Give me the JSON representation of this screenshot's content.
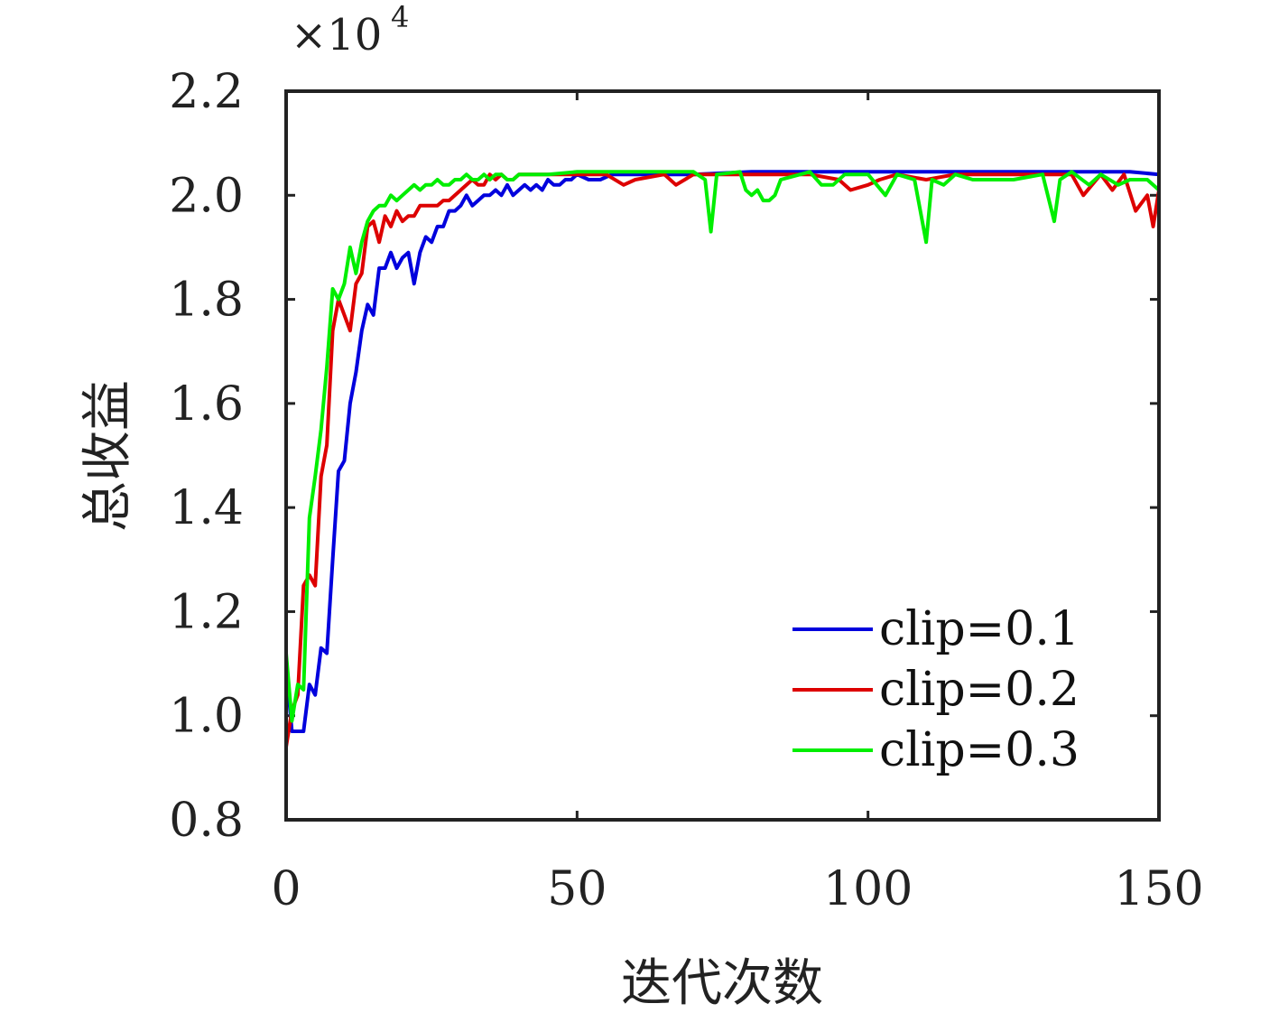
{
  "chart_data": {
    "type": "line",
    "title": "",
    "xlabel": "迭代次数",
    "ylabel": "总收益",
    "y_multiplier_label": "×10",
    "y_multiplier_exponent": "4",
    "xlim": [
      0,
      150
    ],
    "ylim": [
      0.8,
      2.2
    ],
    "x_ticks": [
      0,
      50,
      100,
      150
    ],
    "x_tick_labels": [
      "0",
      "50",
      "100",
      "150"
    ],
    "y_ticks": [
      0.8,
      1.0,
      1.2,
      1.4,
      1.6,
      1.8,
      2.0,
      2.2
    ],
    "y_tick_labels": [
      "0.8",
      "1.0",
      "1.2",
      "1.4",
      "1.6",
      "1.8",
      "2.0",
      "2.2"
    ],
    "grid": false,
    "legend_position": "bottom-right",
    "series": [
      {
        "name": "clip=0.1",
        "color": "#0000dd",
        "points": [
          [
            0,
            1.1
          ],
          [
            1,
            0.97
          ],
          [
            2,
            0.97
          ],
          [
            3,
            0.97
          ],
          [
            4,
            1.06
          ],
          [
            5,
            1.04
          ],
          [
            6,
            1.13
          ],
          [
            7,
            1.12
          ],
          [
            8,
            1.3
          ],
          [
            9,
            1.47
          ],
          [
            10,
            1.49
          ],
          [
            11,
            1.6
          ],
          [
            12,
            1.66
          ],
          [
            13,
            1.74
          ],
          [
            14,
            1.79
          ],
          [
            15,
            1.77
          ],
          [
            16,
            1.86
          ],
          [
            17,
            1.86
          ],
          [
            18,
            1.89
          ],
          [
            19,
            1.86
          ],
          [
            20,
            1.88
          ],
          [
            21,
            1.89
          ],
          [
            22,
            1.83
          ],
          [
            23,
            1.89
          ],
          [
            24,
            1.92
          ],
          [
            25,
            1.91
          ],
          [
            26,
            1.94
          ],
          [
            27,
            1.94
          ],
          [
            28,
            1.97
          ],
          [
            29,
            1.97
          ],
          [
            30,
            1.98
          ],
          [
            31,
            2.0
          ],
          [
            32,
            1.98
          ],
          [
            33,
            1.99
          ],
          [
            34,
            2.0
          ],
          [
            35,
            2.0
          ],
          [
            36,
            2.01
          ],
          [
            37,
            2.0
          ],
          [
            38,
            2.02
          ],
          [
            39,
            2.0
          ],
          [
            40,
            2.01
          ],
          [
            41,
            2.02
          ],
          [
            42,
            2.01
          ],
          [
            43,
            2.02
          ],
          [
            44,
            2.01
          ],
          [
            45,
            2.03
          ],
          [
            46,
            2.02
          ],
          [
            47,
            2.02
          ],
          [
            48,
            2.03
          ],
          [
            49,
            2.03
          ],
          [
            50,
            2.04
          ],
          [
            52,
            2.03
          ],
          [
            54,
            2.03
          ],
          [
            56,
            2.04
          ],
          [
            58,
            2.04
          ],
          [
            60,
            2.04
          ],
          [
            65,
            2.04
          ],
          [
            70,
            2.04
          ],
          [
            80,
            2.045
          ],
          [
            90,
            2.045
          ],
          [
            100,
            2.045
          ],
          [
            110,
            2.045
          ],
          [
            120,
            2.045
          ],
          [
            130,
            2.045
          ],
          [
            140,
            2.045
          ],
          [
            145,
            2.045
          ],
          [
            150,
            2.04
          ]
        ]
      },
      {
        "name": "clip=0.2",
        "color": "#dd0000",
        "points": [
          [
            0,
            0.94
          ],
          [
            1,
            1.01
          ],
          [
            2,
            1.04
          ],
          [
            3,
            1.25
          ],
          [
            4,
            1.27
          ],
          [
            5,
            1.25
          ],
          [
            6,
            1.46
          ],
          [
            7,
            1.52
          ],
          [
            8,
            1.74
          ],
          [
            9,
            1.8
          ],
          [
            10,
            1.77
          ],
          [
            11,
            1.74
          ],
          [
            12,
            1.83
          ],
          [
            13,
            1.85
          ],
          [
            14,
            1.94
          ],
          [
            15,
            1.95
          ],
          [
            16,
            1.91
          ],
          [
            17,
            1.96
          ],
          [
            18,
            1.94
          ],
          [
            19,
            1.97
          ],
          [
            20,
            1.95
          ],
          [
            21,
            1.96
          ],
          [
            22,
            1.96
          ],
          [
            23,
            1.98
          ],
          [
            24,
            1.98
          ],
          [
            25,
            1.98
          ],
          [
            26,
            1.98
          ],
          [
            27,
            1.99
          ],
          [
            28,
            1.99
          ],
          [
            29,
            2.0
          ],
          [
            30,
            2.01
          ],
          [
            31,
            2.02
          ],
          [
            32,
            2.03
          ],
          [
            33,
            2.02
          ],
          [
            34,
            2.02
          ],
          [
            35,
            2.04
          ],
          [
            36,
            2.03
          ],
          [
            37,
            2.04
          ],
          [
            38,
            2.03
          ],
          [
            39,
            2.03
          ],
          [
            40,
            2.04
          ],
          [
            45,
            2.04
          ],
          [
            50,
            2.04
          ],
          [
            55,
            2.04
          ],
          [
            58,
            2.02
          ],
          [
            60,
            2.03
          ],
          [
            65,
            2.04
          ],
          [
            67,
            2.02
          ],
          [
            70,
            2.04
          ],
          [
            75,
            2.04
          ],
          [
            80,
            2.04
          ],
          [
            85,
            2.04
          ],
          [
            90,
            2.04
          ],
          [
            95,
            2.03
          ],
          [
            97,
            2.01
          ],
          [
            100,
            2.02
          ],
          [
            102,
            2.03
          ],
          [
            105,
            2.04
          ],
          [
            110,
            2.03
          ],
          [
            115,
            2.04
          ],
          [
            120,
            2.04
          ],
          [
            125,
            2.04
          ],
          [
            130,
            2.04
          ],
          [
            135,
            2.04
          ],
          [
            137,
            2.0
          ],
          [
            140,
            2.04
          ],
          [
            142,
            2.01
          ],
          [
            144,
            2.04
          ],
          [
            146,
            1.97
          ],
          [
            148,
            2.0
          ],
          [
            149,
            1.94
          ],
          [
            150,
            2.01
          ]
        ]
      },
      {
        "name": "clip=0.3",
        "color": "#00ee00",
        "points": [
          [
            0,
            1.12
          ],
          [
            1,
            0.99
          ],
          [
            2,
            1.06
          ],
          [
            3,
            1.05
          ],
          [
            4,
            1.38
          ],
          [
            5,
            1.46
          ],
          [
            6,
            1.55
          ],
          [
            7,
            1.67
          ],
          [
            8,
            1.82
          ],
          [
            9,
            1.8
          ],
          [
            10,
            1.83
          ],
          [
            11,
            1.9
          ],
          [
            12,
            1.85
          ],
          [
            13,
            1.91
          ],
          [
            14,
            1.95
          ],
          [
            15,
            1.97
          ],
          [
            16,
            1.98
          ],
          [
            17,
            1.98
          ],
          [
            18,
            2.0
          ],
          [
            19,
            1.99
          ],
          [
            20,
            2.0
          ],
          [
            21,
            2.01
          ],
          [
            22,
            2.02
          ],
          [
            23,
            2.01
          ],
          [
            24,
            2.02
          ],
          [
            25,
            2.02
          ],
          [
            26,
            2.03
          ],
          [
            27,
            2.02
          ],
          [
            28,
            2.02
          ],
          [
            29,
            2.03
          ],
          [
            30,
            2.03
          ],
          [
            31,
            2.04
          ],
          [
            32,
            2.03
          ],
          [
            33,
            2.03
          ],
          [
            34,
            2.04
          ],
          [
            35,
            2.03
          ],
          [
            36,
            2.04
          ],
          [
            37,
            2.04
          ],
          [
            38,
            2.03
          ],
          [
            39,
            2.03
          ],
          [
            40,
            2.04
          ],
          [
            45,
            2.04
          ],
          [
            50,
            2.045
          ],
          [
            60,
            2.045
          ],
          [
            70,
            2.045
          ],
          [
            72,
            2.03
          ],
          [
            73,
            1.93
          ],
          [
            74,
            2.04
          ],
          [
            78,
            2.045
          ],
          [
            79,
            2.01
          ],
          [
            80,
            2.0
          ],
          [
            81,
            2.01
          ],
          [
            82,
            1.99
          ],
          [
            83,
            1.99
          ],
          [
            84,
            2.0
          ],
          [
            85,
            2.03
          ],
          [
            90,
            2.045
          ],
          [
            92,
            2.02
          ],
          [
            94,
            2.02
          ],
          [
            96,
            2.04
          ],
          [
            100,
            2.04
          ],
          [
            103,
            2.0
          ],
          [
            105,
            2.04
          ],
          [
            108,
            2.03
          ],
          [
            110,
            1.91
          ],
          [
            111,
            2.03
          ],
          [
            113,
            2.02
          ],
          [
            115,
            2.04
          ],
          [
            118,
            2.03
          ],
          [
            125,
            2.03
          ],
          [
            130,
            2.04
          ],
          [
            132,
            1.95
          ],
          [
            133,
            2.03
          ],
          [
            135,
            2.045
          ],
          [
            138,
            2.02
          ],
          [
            140,
            2.04
          ],
          [
            143,
            2.02
          ],
          [
            145,
            2.03
          ],
          [
            148,
            2.03
          ],
          [
            150,
            2.01
          ]
        ]
      }
    ]
  }
}
